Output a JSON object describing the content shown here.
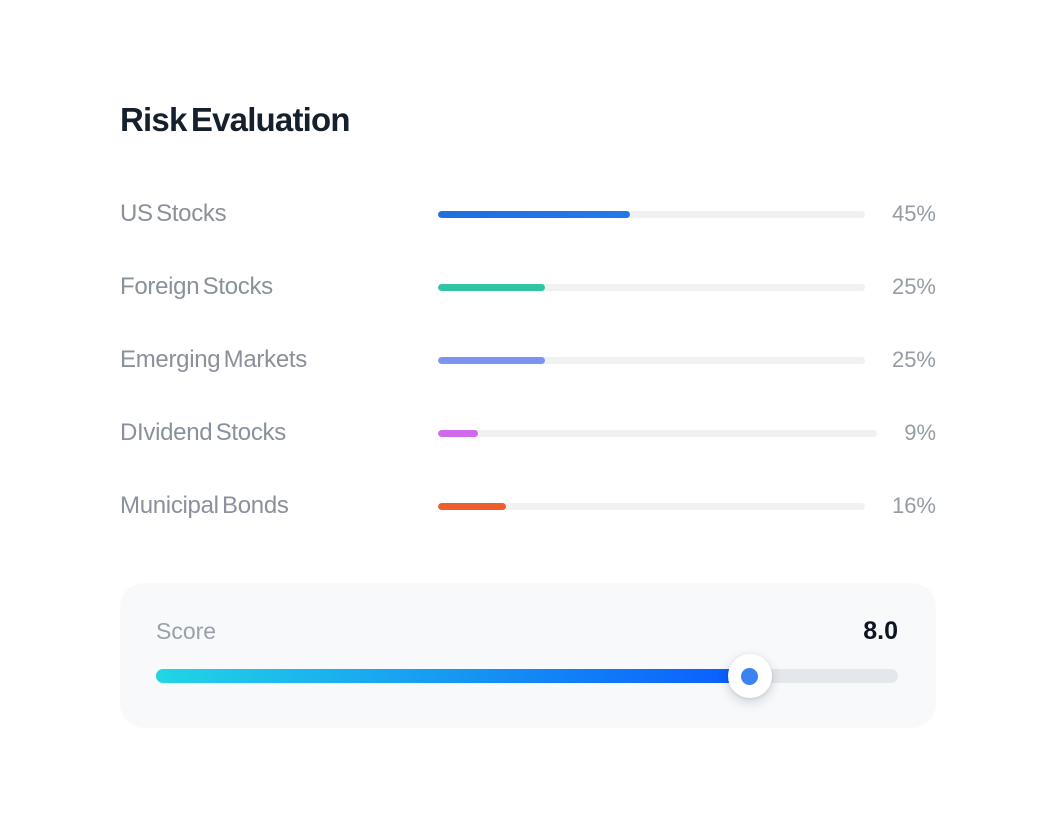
{
  "page": {
    "title": "Risk Evaluation"
  },
  "allocations": [
    {
      "label": "US Stocks",
      "percent_text": "45%",
      "value": 45,
      "bar_color": "#1e6fe0",
      "bar_color_end": "#2478ee"
    },
    {
      "label": "Foreign Stocks",
      "percent_text": "25%",
      "value": 25,
      "bar_color": "#30c4a4",
      "bar_color_end": "#30c4a4"
    },
    {
      "label": "Emerging Markets",
      "percent_text": "25%",
      "value": 25,
      "bar_color": "#7d93ef",
      "bar_color_end": "#7d93ef"
    },
    {
      "label": "DIvidend Stocks",
      "percent_text": "9%",
      "value": 9,
      "bar_color": "#d169ee",
      "bar_color_end": "#d169ee"
    },
    {
      "label": "Municipal Bonds",
      "percent_text": "16%",
      "value": 16,
      "bar_color": "#ee5d2d",
      "bar_color_end": "#ee5d2d"
    }
  ],
  "score": {
    "label": "Score",
    "value_text": "8.0",
    "value": 8.0,
    "max": 10,
    "percent": 80,
    "gradient_start": "#22d5e6",
    "gradient_end": "#0a5bfe",
    "rest_track_color": "#e4e7eb",
    "handle_dot_color": "#3b83f2"
  },
  "colors": {
    "background": "#ffffff",
    "title": "#16202c",
    "row_label": "#8a909c",
    "row_percent": "#959ca6",
    "row_track": "#f0f1f3",
    "card_background": "#f7f9fb"
  }
}
